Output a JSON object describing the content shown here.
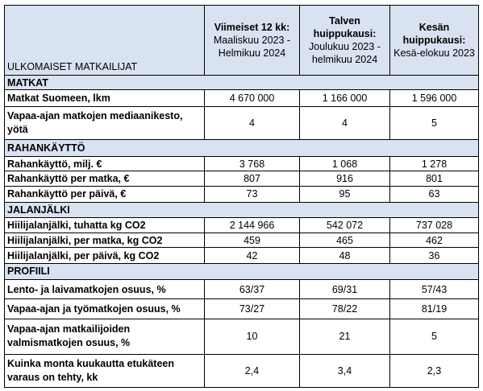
{
  "header": {
    "corner": "ULKOMAISET MATKAILIJAT",
    "columns": [
      {
        "title": "Viimeiset 12 kk:",
        "subtitle": "Maaliskuu 2023 - Helmikuu 2024"
      },
      {
        "title": "Talven huippukausi:",
        "subtitle": "Joulukuu 2023 - helmikuu 2024"
      },
      {
        "title": "Kesän huippukausi:",
        "subtitle": "Kesä-elokuu 2023"
      }
    ]
  },
  "sections": [
    {
      "title": "MATKAT",
      "rows": [
        {
          "label": "Matkat Suomeen, lkm",
          "values": [
            "4 670 000",
            "1 166 000",
            "1 596 000"
          ]
        },
        {
          "label": "Vapaa-ajan matkojen mediaanikesto, yötä",
          "values": [
            "4",
            "4",
            "5"
          ]
        }
      ]
    },
    {
      "title": "RAHANKÄYTTÖ",
      "rows": [
        {
          "label": "Rahankäyttö, milj. €",
          "values": [
            "3 768",
            "1 068",
            "1 278"
          ]
        },
        {
          "label": "Rahankäyttö per matka, €",
          "values": [
            "807",
            "916",
            "801"
          ]
        },
        {
          "label": "Rahankäyttö per päivä, €",
          "values": [
            "73",
            "95",
            "63"
          ]
        }
      ]
    },
    {
      "title": "JALANJÄLKI",
      "rows": [
        {
          "label": "Hiilijalanjälki, tuhatta kg CO2",
          "values": [
            "2 144 966",
            "542 072",
            "737 028"
          ]
        },
        {
          "label": "Hiilijalanjälki, per matka, kg CO2",
          "values": [
            "459",
            "465",
            "462"
          ]
        },
        {
          "label": "Hiilijalanjälki, per päivä, kg CO2",
          "values": [
            "42",
            "48",
            "36"
          ]
        }
      ]
    },
    {
      "title": "PROFIILI",
      "rows": [
        {
          "label": "Lento- ja laivamatkojen osuus, %",
          "values": [
            "63/37",
            "69/31",
            "57/43"
          ]
        },
        {
          "label": "Vapaa-ajan ja työmatkojen osuus, %",
          "values": [
            "73/27",
            "78/22",
            "81/19"
          ]
        },
        {
          "label": "Vapaa-ajan matkailijoiden valmismatkojen osuus, %",
          "values": [
            "10",
            "21",
            "5"
          ]
        },
        {
          "label": "Kuinka monta kuukautta etukäteen varaus on tehty, kk",
          "values": [
            "2,4",
            "3,4",
            "2,3"
          ]
        }
      ]
    }
  ]
}
